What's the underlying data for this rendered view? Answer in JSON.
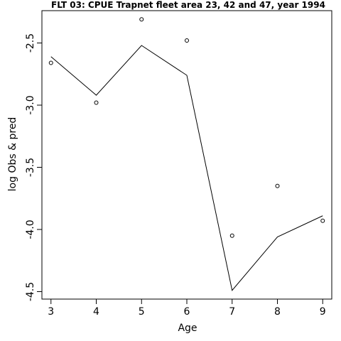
{
  "chart_data": {
    "type": "scatter",
    "title": "FLT 03: CPUE Trapnet fleet area 23, 42 and 47, year 1994",
    "xlabel": "Age",
    "ylabel": "log Obs & pred",
    "xlim": [
      2.8,
      9.2
    ],
    "ylim": [
      -4.56,
      -2.24
    ],
    "x_ticks": [
      3,
      4,
      5,
      6,
      7,
      8,
      9
    ],
    "y_ticks": [
      -2.5,
      -3.0,
      -3.5,
      -4.0,
      -4.5
    ],
    "y_tick_labels": [
      "-2.5",
      "-3.0",
      "-3.5",
      "-4.0",
      "-4.5"
    ],
    "grid": false,
    "series": [
      {
        "kind": "points",
        "marker": "open-circle",
        "x": [
          3,
          4,
          5,
          6,
          7,
          8,
          9
        ],
        "values": [
          -2.66,
          -2.98,
          -2.31,
          -2.48,
          -4.05,
          -3.65,
          -3.93
        ]
      },
      {
        "kind": "line",
        "x": [
          3,
          4,
          5,
          6,
          7,
          8,
          9
        ],
        "values": [
          -2.61,
          -2.92,
          -2.52,
          -2.76,
          -4.49,
          -4.06,
          -3.89
        ]
      }
    ]
  }
}
